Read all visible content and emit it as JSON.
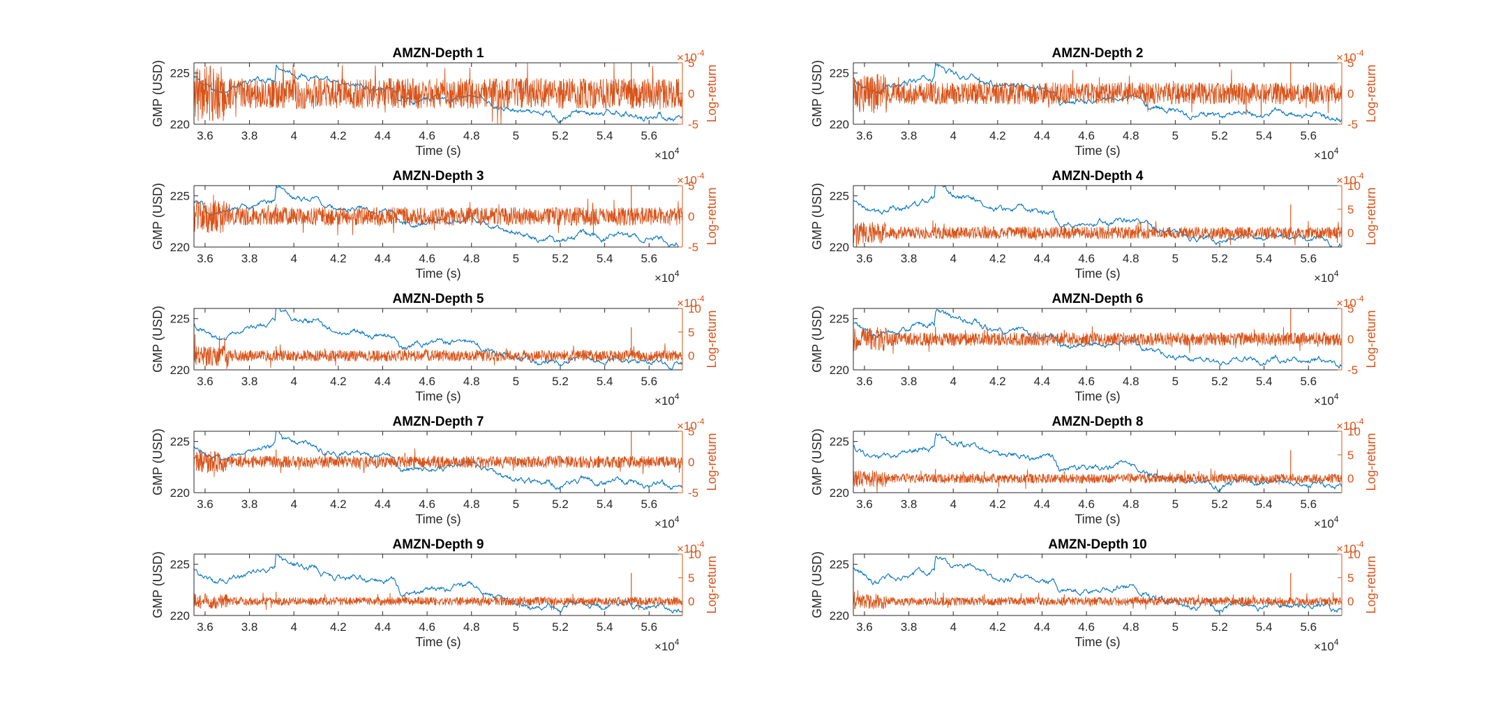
{
  "chart_data": {
    "type": "line",
    "layout": "5 rows x 2 columns of dual-axis line charts",
    "common": {
      "xlabel": "Time (s)",
      "ylabel_left": "GMP (USD)",
      "ylabel_right": "Log-return",
      "xlim": [
        35500,
        57500
      ],
      "xticks": [
        36000,
        38000,
        40000,
        42000,
        44000,
        46000,
        48000,
        50000,
        52000,
        54000,
        56000
      ],
      "xtick_labels": [
        "3.6",
        "3.8",
        "4",
        "4.2",
        "4.4",
        "4.6",
        "4.8",
        "5",
        "5.2",
        "5.4",
        "5.6"
      ],
      "x_multiplier_base": "×10",
      "x_multiplier_exp": "4",
      "y_left_lim": [
        220,
        226
      ],
      "y_left_ticks": [
        220,
        225
      ],
      "y_right_multiplier_base": "×10",
      "y_right_multiplier_exp": "-4",
      "left_series_color": "#0072bd",
      "right_series_color": "#d95319",
      "gmp_path": [
        [
          35500,
          224.5
        ],
        [
          36000,
          223.8
        ],
        [
          36500,
          223.2
        ],
        [
          37000,
          223.6
        ],
        [
          37500,
          223.8
        ],
        [
          38000,
          224.0
        ],
        [
          38500,
          224.3
        ],
        [
          39000,
          224.5
        ],
        [
          39150,
          224.6
        ],
        [
          39200,
          226.0
        ],
        [
          39500,
          225.5
        ],
        [
          40000,
          225.0
        ],
        [
          40500,
          224.7
        ],
        [
          41000,
          224.8
        ],
        [
          41300,
          224.2
        ],
        [
          41800,
          223.8
        ],
        [
          42500,
          223.6
        ],
        [
          43000,
          223.8
        ],
        [
          43500,
          223.4
        ],
        [
          44000,
          223.5
        ],
        [
          44500,
          223.4
        ],
        [
          44800,
          222.2
        ],
        [
          45500,
          222.3
        ],
        [
          46000,
          222.4
        ],
        [
          46500,
          222.6
        ],
        [
          47000,
          222.4
        ],
        [
          47500,
          222.8
        ],
        [
          48000,
          222.9
        ],
        [
          48500,
          222.3
        ],
        [
          49000,
          221.7
        ],
        [
          49500,
          221.5
        ],
        [
          50000,
          221.3
        ],
        [
          50500,
          221.0
        ],
        [
          51000,
          220.8
        ],
        [
          51500,
          221.1
        ],
        [
          52000,
          220.5
        ],
        [
          52500,
          221.0
        ],
        [
          53000,
          221.3
        ],
        [
          53500,
          221.0
        ],
        [
          54000,
          220.8
        ],
        [
          54500,
          221.3
        ],
        [
          55000,
          221.0
        ],
        [
          55500,
          220.9
        ],
        [
          56000,
          220.7
        ],
        [
          56500,
          221.0
        ],
        [
          57000,
          220.4
        ],
        [
          57500,
          220.4
        ]
      ],
      "return_spikes": [
        {
          "x": 55200,
          "value": 6.0
        },
        {
          "x": 39200,
          "value": 2.0
        },
        {
          "x": 41400,
          "value": 1.5
        },
        {
          "x": 45000,
          "value": 1.5
        }
      ]
    },
    "subplots": [
      {
        "title": "AMZN-Depth 1",
        "y_right_lim": [
          -5,
          5
        ],
        "y_right_ticks": [
          -5,
          0,
          5
        ],
        "noise_amplitude": 2.5
      },
      {
        "title": "AMZN-Depth 2",
        "y_right_lim": [
          -5,
          5
        ],
        "y_right_ticks": [
          -5,
          0,
          5
        ],
        "noise_amplitude": 1.8
      },
      {
        "title": "AMZN-Depth 3",
        "y_right_lim": [
          -5,
          5
        ],
        "y_right_ticks": [
          -5,
          0,
          5
        ],
        "noise_amplitude": 1.5
      },
      {
        "title": "AMZN-Depth 4",
        "y_right_lim": [
          -3,
          10
        ],
        "y_right_ticks": [
          0,
          5,
          10
        ],
        "noise_amplitude": 1.3
      },
      {
        "title": "AMZN-Depth 5",
        "y_right_lim": [
          -3,
          10
        ],
        "y_right_ticks": [
          0,
          5,
          10
        ],
        "noise_amplitude": 1.2
      },
      {
        "title": "AMZN-Depth 6",
        "y_right_lim": [
          -5,
          5
        ],
        "y_right_ticks": [
          -5,
          0,
          5
        ],
        "noise_amplitude": 1.1
      },
      {
        "title": "AMZN-Depth 7",
        "y_right_lim": [
          -5,
          5
        ],
        "y_right_ticks": [
          -5,
          0,
          5
        ],
        "noise_amplitude": 1.0
      },
      {
        "title": "AMZN-Depth 8",
        "y_right_lim": [
          -3,
          10
        ],
        "y_right_ticks": [
          0,
          5,
          10
        ],
        "noise_amplitude": 1.0
      },
      {
        "title": "AMZN-Depth 9",
        "y_right_lim": [
          -3,
          10
        ],
        "y_right_ticks": [
          0,
          5,
          10
        ],
        "noise_amplitude": 0.9
      },
      {
        "title": "AMZN-Depth 10",
        "y_right_lim": [
          -3,
          10
        ],
        "y_right_ticks": [
          0,
          5,
          10
        ],
        "noise_amplitude": 0.9
      }
    ]
  }
}
